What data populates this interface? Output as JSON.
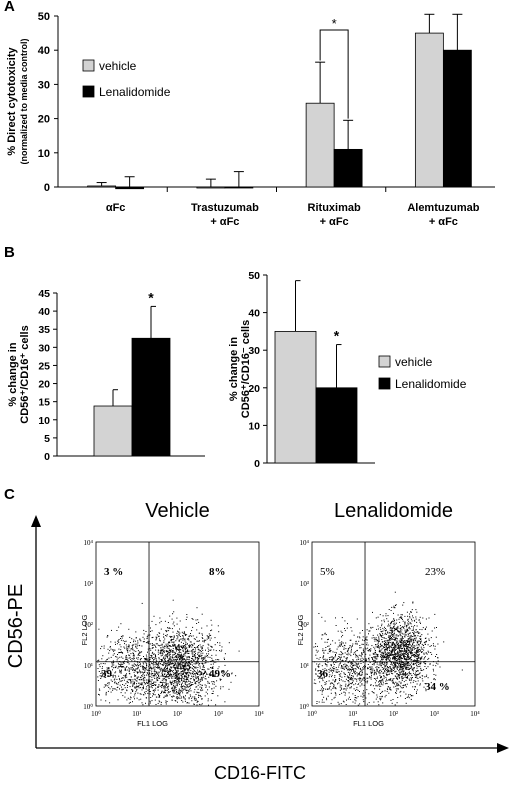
{
  "panels": {
    "a": "A",
    "b": "B",
    "c": "C"
  },
  "chart_data": [
    {
      "type": "bar",
      "panel": "A",
      "ylabel": "% Direct cytotoxicity",
      "ylabel_sub": "(normalized to media control)",
      "ylim": [
        0,
        50
      ],
      "yticks": [
        "0",
        "10",
        "20",
        "30",
        "40",
        "50"
      ],
      "categories": [
        {
          "line1": "αFc",
          "line2": ""
        },
        {
          "line1": "Trastuzumab",
          "line2": "+ αFc"
        },
        {
          "line1": "Rituximab",
          "line2": "+ αFc"
        },
        {
          "line1": "Alemtuzumab",
          "line2": "+ αFc"
        }
      ],
      "series": [
        {
          "name": "vehicle",
          "color": "#d3d3d3",
          "values": [
            0.3,
            0,
            24.5,
            45
          ],
          "errors": [
            1.0,
            2.3,
            12,
            5.5
          ]
        },
        {
          "name": "Lenalidomide",
          "color": "#000000",
          "values": [
            -0.5,
            0,
            11,
            40
          ],
          "errors": [
            3.0,
            4.5,
            8.5,
            10.5
          ]
        }
      ],
      "annotations": [
        {
          "text": "*",
          "between": "Rituximab + αFc"
        }
      ],
      "legend": "upper-left"
    },
    {
      "type": "bar",
      "panel": "B-left",
      "ylabel_line1": "% change in",
      "ylabel_line2": "CD56⁺/CD16⁺ cells",
      "ylim": [
        0,
        45
      ],
      "yticks": [
        "0",
        "5",
        "10",
        "15",
        "20",
        "25",
        "30",
        "35",
        "40",
        "45"
      ],
      "series": [
        {
          "name": "vehicle",
          "color": "#d3d3d3",
          "values": [
            13.8
          ],
          "errors": [
            4.5
          ]
        },
        {
          "name": "Lenalidomide",
          "color": "#000000",
          "values": [
            32.5
          ],
          "errors": [
            8.8
          ]
        }
      ],
      "annotations": [
        {
          "text": "*",
          "on": "Lenalidomide"
        }
      ]
    },
    {
      "type": "bar",
      "panel": "B-right",
      "ylabel_line1": "% change in",
      "ylabel_line2": "CD56⁺/CD16⁻ cells",
      "ylim": [
        0,
        50
      ],
      "yticks": [
        "0",
        "10",
        "20",
        "30",
        "40",
        "50"
      ],
      "series": [
        {
          "name": "vehicle",
          "color": "#d3d3d3",
          "values": [
            35
          ],
          "errors": [
            13.5
          ]
        },
        {
          "name": "Lenalidomide",
          "color": "#000000",
          "values": [
            20
          ],
          "errors": [
            11.5
          ]
        }
      ],
      "annotations": [
        {
          "text": "*",
          "on": "Lenalidomide"
        }
      ],
      "legend": "right"
    },
    {
      "type": "scatter",
      "panel": "C",
      "xlabel": "CD16-FITC",
      "ylabel": "CD56-PE",
      "plots": [
        {
          "title": "Vehicle",
          "quadrants": {
            "upper_left": "3 %",
            "upper_right": "8%",
            "lower_left": "39",
            "lower_right": "49%"
          },
          "gate": {
            "x": 20,
            "y": 12
          },
          "clusters": [
            {
              "cx": 120,
              "cy": 9,
              "spread_x": 0.45,
              "spread_y": 0.5,
              "n": 1500
            },
            {
              "cx": 8,
              "cy": 8,
              "spread_x": 0.6,
              "spread_y": 0.45,
              "n": 900
            }
          ]
        },
        {
          "title": "Lenalidomide",
          "quadrants": {
            "upper_left": "5%",
            "upper_right": "23%",
            "lower_left": "36",
            "lower_right": "34 %"
          },
          "gate": {
            "x": 20,
            "y": 12
          },
          "clusters": [
            {
              "cx": 150,
              "cy": 20,
              "spread_x": 0.35,
              "spread_y": 0.45,
              "n": 1500
            },
            {
              "cx": 8,
              "cy": 8,
              "spread_x": 0.6,
              "spread_y": 0.45,
              "n": 900
            }
          ]
        }
      ],
      "axis_ticks": [
        "10⁰",
        "10¹",
        "10²",
        "10³",
        "10⁴"
      ],
      "axis_names": {
        "x": "FL1 LOG",
        "y": "FL2 LOG"
      },
      "scale": "log"
    }
  ]
}
